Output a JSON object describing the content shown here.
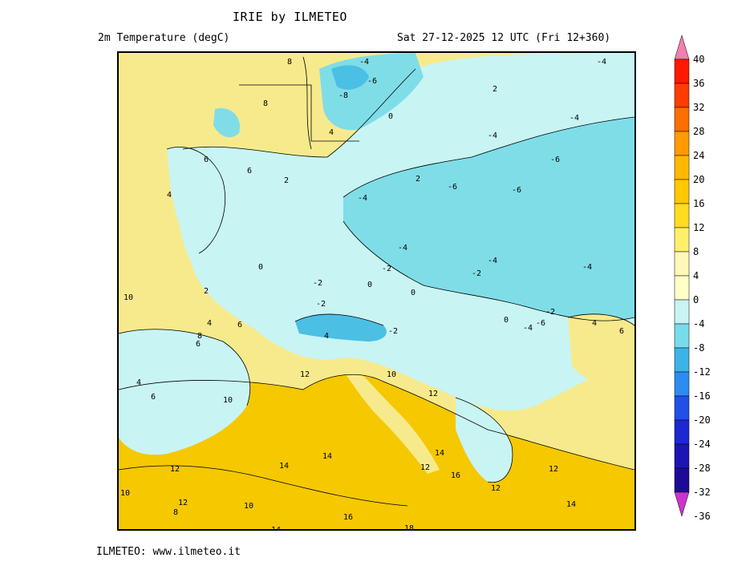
{
  "header": {
    "title": "IRIE by ILMETEO",
    "variable": "2m Temperature (degC)",
    "valid_time": "Sat 27-12-2025 12 UTC (Fri 12+360)"
  },
  "footer": {
    "credit": "ILMETEO: www.ilmeteo.it"
  },
  "legend": {
    "labels": [
      "40",
      "36",
      "32",
      "28",
      "24",
      "20",
      "16",
      "12",
      "8",
      "4",
      "0",
      "-4",
      "-8",
      "-12",
      "-16",
      "-20",
      "-24",
      "-28",
      "-32",
      "-36"
    ],
    "colors": [
      "#f27fb0",
      "#ff1a00",
      "#ff3c00",
      "#ff6e00",
      "#ff9a00",
      "#ffb800",
      "#ffc800",
      "#ffdc20",
      "#fff06a",
      "#fff8b8",
      "#ffffc8",
      "#c8f4f4",
      "#78dceb",
      "#3cb4e8",
      "#2d8cf0",
      "#2050e6",
      "#1e28d2",
      "#1e14b4",
      "#1e0a96",
      "#cc33cc"
    ]
  },
  "contour_labels": [
    "8",
    "8",
    "-8",
    "-6",
    "-4",
    "4",
    "2",
    "0",
    "-4",
    "-4",
    "-6",
    "-6",
    "-4",
    "6",
    "6",
    "4",
    "2",
    "-6",
    "-4",
    "2",
    "0",
    "-4",
    "-4",
    "-2",
    "0",
    "-2",
    "-4",
    "-2",
    "-2",
    "-4",
    "-6",
    "10",
    "8",
    "2",
    "6",
    "4",
    "-2",
    "4",
    "0",
    "-2",
    "0",
    "6",
    "12",
    "6",
    "4",
    "10",
    "12",
    "14",
    "14",
    "12",
    "12",
    "14",
    "10",
    "10",
    "12",
    "16",
    "12",
    "12",
    "14",
    "16",
    "18",
    "10",
    "8",
    "14",
    "4",
    "6"
  ],
  "colors": {
    "warm": "#f7ea8c",
    "warmer": "#f5c800",
    "cool": "#c8f4f4",
    "cold": "#7fdde8",
    "colder": "#4cbfe4"
  }
}
